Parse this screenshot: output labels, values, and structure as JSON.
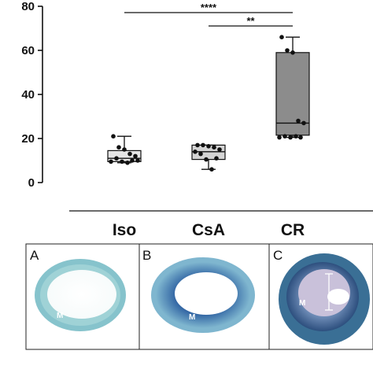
{
  "chart_data": {
    "type": "box",
    "categories": [
      "Iso",
      "CsA",
      "CR"
    ],
    "ylim": [
      0,
      80
    ],
    "yticks": [
      "0",
      "20",
      "40",
      "60",
      "80"
    ],
    "series": [
      {
        "category": "Iso",
        "whisker_low": 9,
        "q1": 9.5,
        "median": 11,
        "q3": 14.5,
        "whisker_high": 21,
        "box_color": "#e4e4e4",
        "points": [
          21,
          16,
          15,
          13,
          12,
          11,
          10,
          9.5,
          9,
          9.5,
          10
        ]
      },
      {
        "category": "CsA",
        "whisker_low": 6,
        "q1": 10.5,
        "median": 14,
        "q3": 17,
        "whisker_high": 17,
        "box_color": "#d4d4d4",
        "points": [
          17,
          17,
          16.5,
          16,
          15,
          13,
          11,
          10.5,
          6,
          14
        ]
      },
      {
        "category": "CR",
        "whisker_low": 20.5,
        "q1": 21.5,
        "median": 27,
        "q3": 59,
        "whisker_high": 66,
        "box_color": "#8c8c8c",
        "points": [
          66,
          60,
          59,
          28,
          27,
          21,
          20.5,
          20.5,
          21,
          20.5
        ]
      }
    ],
    "significance": [
      {
        "from": "Iso",
        "to": "CR",
        "label": "****"
      },
      {
        "from": "CsA",
        "to": "CR",
        "label": "**"
      }
    ]
  },
  "panels": [
    {
      "letter": "A",
      "label": "M"
    },
    {
      "letter": "B",
      "label": "M"
    },
    {
      "letter": "C",
      "label": "M"
    }
  ]
}
